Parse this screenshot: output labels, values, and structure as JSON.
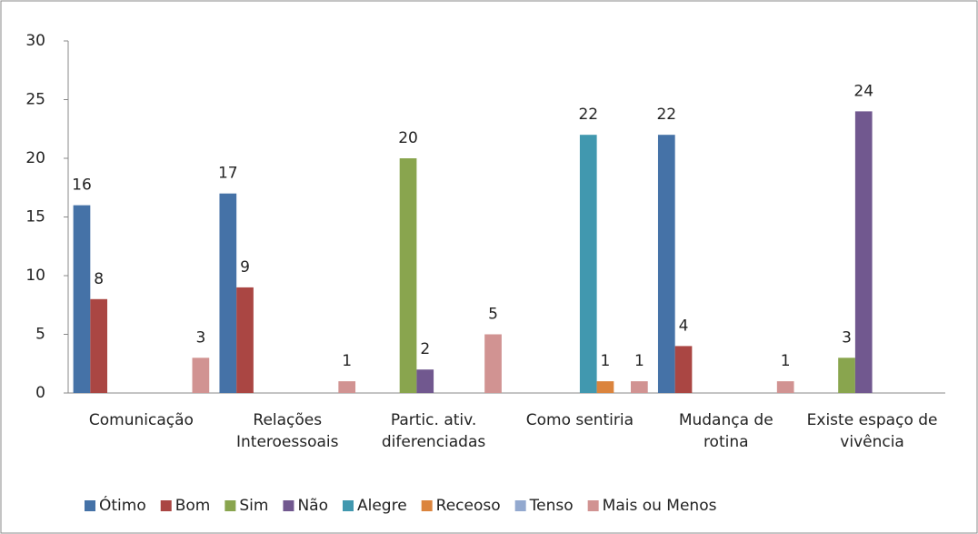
{
  "chart_data": {
    "type": "bar",
    "categories": [
      "Comunicação",
      "Relações Interoessoais",
      "Partic. ativ. diferenciadas",
      "Como sentiria",
      "Mudança de rotina",
      "Existe espaço de vivência"
    ],
    "series": [
      {
        "name": "Ótimo",
        "color": "#4572A7",
        "values": [
          16,
          17,
          null,
          null,
          22,
          null
        ]
      },
      {
        "name": "Bom",
        "color": "#AA4643",
        "values": [
          8,
          9,
          null,
          null,
          4,
          null
        ]
      },
      {
        "name": "Sim",
        "color": "#89A54E",
        "values": [
          null,
          null,
          20,
          null,
          null,
          3
        ]
      },
      {
        "name": "Não",
        "color": "#71588F",
        "values": [
          null,
          null,
          2,
          null,
          null,
          24
        ]
      },
      {
        "name": "Alegre",
        "color": "#4198AF",
        "values": [
          null,
          null,
          null,
          22,
          null,
          null
        ]
      },
      {
        "name": "Receoso",
        "color": "#DB843D",
        "values": [
          null,
          null,
          null,
          1,
          null,
          null
        ]
      },
      {
        "name": "Tenso",
        "color": "#93A9CF",
        "values": [
          null,
          null,
          null,
          null,
          null,
          null
        ]
      },
      {
        "name": "Mais ou Menos",
        "color": "#D19392",
        "values": [
          3,
          1,
          5,
          1,
          1,
          null
        ]
      }
    ],
    "ylim": [
      0,
      30
    ],
    "yticks": [
      0,
      5,
      10,
      15,
      20,
      25,
      30
    ],
    "grid": false,
    "legend": "bottom"
  }
}
